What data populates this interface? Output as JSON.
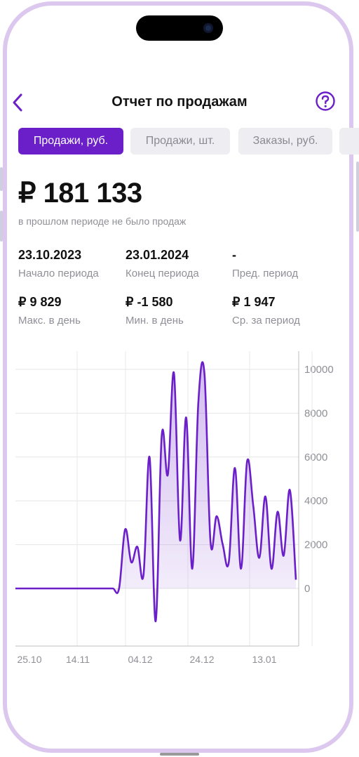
{
  "header": {
    "title": "Отчет по продажам"
  },
  "tabs": [
    {
      "label": "Продажи, руб.",
      "active": true
    },
    {
      "label": "Продажи, шт.",
      "active": false
    },
    {
      "label": "Заказы, руб.",
      "active": false
    }
  ],
  "summary": {
    "total": "₽ 181 133",
    "note": "в прошлом периоде не было продаж"
  },
  "stats": {
    "start": {
      "value": "23.10.2023",
      "label": "Начало периода"
    },
    "end": {
      "value": "23.01.2024",
      "label": "Конец периода"
    },
    "prev": {
      "value": "-",
      "label": "Пред. период"
    },
    "max": {
      "value": "₽ 9 829",
      "label": "Макс. в день"
    },
    "min": {
      "value": "₽ -1 580",
      "label": "Мин. в день"
    },
    "avg": {
      "value": "₽ 1 947",
      "label": "Ср. за период"
    }
  },
  "colors": {
    "accent": "#6a1fc9",
    "tab_inactive_bg": "#eeedf1",
    "frame": "#dcc7ef"
  },
  "icons": {
    "back": "chevron-left-icon",
    "help": "question-circle-icon"
  },
  "chart_data": {
    "type": "area",
    "x_tick_labels": [
      "25.10",
      "14.11",
      "04.12",
      "24.12",
      "13.01"
    ],
    "y_tick_labels": [
      "10000",
      "8000",
      "6000",
      "4000",
      "2000",
      "0"
    ],
    "ylim": [
      -1580,
      10000
    ],
    "grid": true,
    "series": [
      {
        "x": [
          "23.10",
          "25.10",
          "27.10",
          "29.10",
          "31.10",
          "02.11",
          "04.11",
          "06.11",
          "08.11",
          "10.11",
          "12.11",
          "14.11",
          "16.11",
          "18.11",
          "20.11",
          "22.11",
          "24.11",
          "26.11",
          "28.11",
          "30.11",
          "02.12",
          "04.12",
          "06.12",
          "08.12",
          "10.12",
          "12.12",
          "14.12",
          "16.12",
          "18.12",
          "20.12",
          "22.12",
          "24.12",
          "26.12",
          "28.12",
          "30.12",
          "01.01",
          "03.01",
          "05.01",
          "07.01",
          "09.01",
          "11.01",
          "13.01",
          "15.01",
          "17.01",
          "19.01",
          "21.01",
          "23.01"
        ],
        "values": [
          0,
          0,
          0,
          0,
          0,
          0,
          0,
          0,
          0,
          0,
          0,
          0,
          0,
          0,
          0,
          0,
          0,
          0,
          2700,
          1200,
          1900,
          600,
          6000,
          -1500,
          7000,
          5200,
          9829,
          2200,
          7800,
          900,
          8500,
          9800,
          2100,
          3300,
          2000,
          1200,
          5500,
          900,
          5800,
          3800,
          1400,
          4200,
          900,
          3500,
          1500,
          4500,
          400
        ]
      }
    ]
  }
}
